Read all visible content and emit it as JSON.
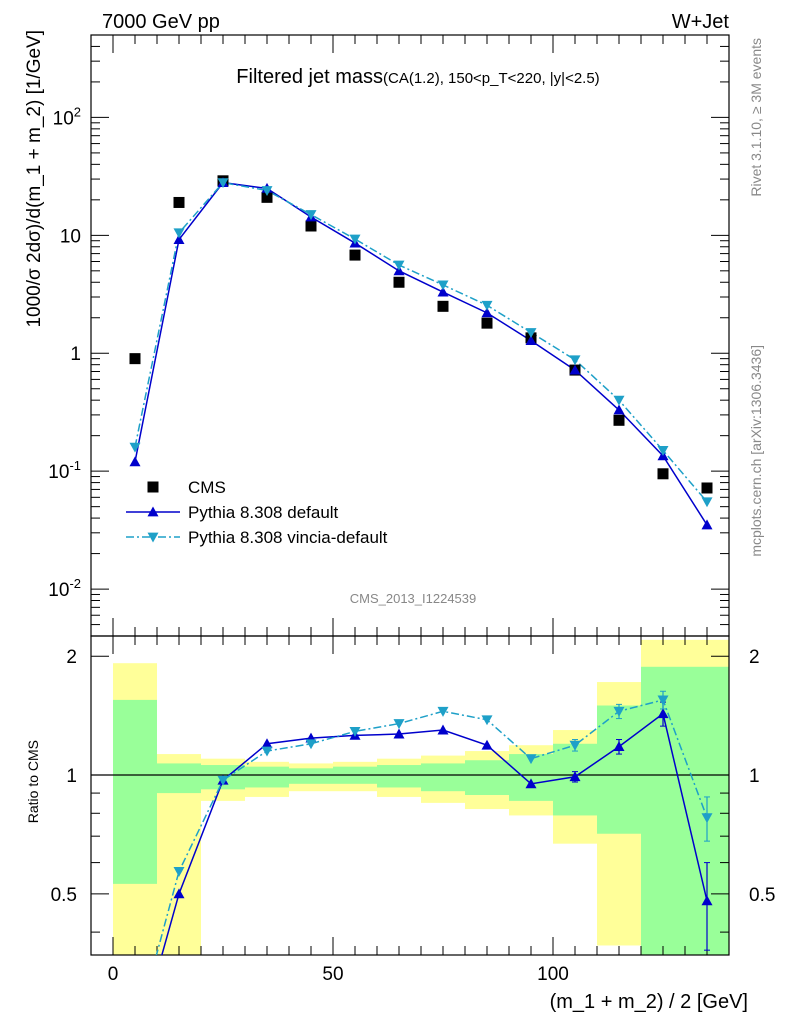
{
  "header": {
    "left": "7000 GeV pp",
    "right": "W+Jet"
  },
  "chart_data": [
    {
      "type": "line",
      "title": "Filtered jet mass",
      "subtitle": "(CA(1.2), 150<p_T<220, |y|<2.5)",
      "ylabel": "1000/σ 2dσ)/d(m_1 + m_2) [1/GeV]",
      "xlabel": "",
      "log_y": true,
      "xlim": [
        -5,
        140
      ],
      "ylim": [
        0.004,
        500
      ],
      "y_tick_labels": [
        "10^-2",
        "10^-1",
        "1",
        "10",
        "10^2"
      ],
      "watermark": "CMS_2013_I1224539",
      "side_label_top": "Rivet 3.1.10, ≥ 3M events",
      "side_label_bottom": "mcplots.cern.ch [arXiv:1306.3436]",
      "legend_position": "bottom-left",
      "x": [
        5,
        15,
        25,
        35,
        45,
        55,
        65,
        75,
        85,
        95,
        105,
        115,
        125,
        135
      ],
      "series": [
        {
          "name": "CMS",
          "style": "marker-square",
          "color": "#000000",
          "values": [
            0.9,
            19,
            29,
            21,
            12,
            6.8,
            4.0,
            2.5,
            1.8,
            1.35,
            0.72,
            0.27,
            0.095,
            0.072
          ]
        },
        {
          "name": "Pythia 8.308 default",
          "style": "solid-triangle-up",
          "color": "#0000cc",
          "values": [
            0.12,
            9.2,
            28,
            25,
            14.3,
            8.6,
            5.0,
            3.3,
            2.2,
            1.28,
            0.72,
            0.33,
            0.135,
            0.035
          ]
        },
        {
          "name": "Pythia 8.308 vincia-default",
          "style": "dashdot-triangle-down",
          "color": "#1ea0c8",
          "values": [
            0.16,
            10.5,
            28,
            24,
            15,
            9.3,
            5.6,
            3.8,
            2.55,
            1.5,
            0.88,
            0.4,
            0.15,
            0.055
          ]
        }
      ]
    },
    {
      "type": "line",
      "title": "",
      "xlabel": "(m_1 + m_2) / 2 [GeV]",
      "ylabel": "Ratio to CMS",
      "xlim": [
        -5,
        140
      ],
      "ylim": [
        0.35,
        2.25
      ],
      "x_ticks": [
        0,
        50,
        100
      ],
      "y_tick_labels": [
        "0.5",
        "1",
        "2"
      ],
      "x": [
        5,
        15,
        25,
        35,
        45,
        55,
        65,
        75,
        85,
        95,
        105,
        115,
        125,
        135
      ],
      "bin_edges": [
        0,
        10,
        20,
        30,
        40,
        50,
        60,
        70,
        80,
        90,
        100,
        110,
        120,
        140
      ],
      "band_yellow_lo": [
        0.35,
        0.35,
        0.86,
        0.88,
        0.91,
        0.91,
        0.88,
        0.85,
        0.82,
        0.79,
        0.67,
        0.37,
        0.35
      ],
      "band_yellow_hi": [
        1.92,
        1.13,
        1.1,
        1.08,
        1.07,
        1.08,
        1.1,
        1.12,
        1.15,
        1.19,
        1.3,
        1.72,
        2.2
      ],
      "band_green_lo": [
        0.53,
        0.9,
        0.92,
        0.93,
        0.95,
        0.95,
        0.93,
        0.91,
        0.89,
        0.86,
        0.79,
        0.71,
        0.35
      ],
      "band_green_hi": [
        1.55,
        1.07,
        1.06,
        1.05,
        1.04,
        1.05,
        1.06,
        1.07,
        1.09,
        1.13,
        1.2,
        1.5,
        1.88
      ],
      "series": [
        {
          "name": "Pythia 8.308 default",
          "color": "#0000cc",
          "values": [
            0.2,
            0.5,
            0.97,
            1.2,
            1.24,
            1.26,
            1.27,
            1.3,
            1.19,
            0.95,
            0.99,
            1.18,
            1.43,
            0.48
          ],
          "errors": [
            0,
            0,
            0,
            0,
            0,
            0,
            0,
            0,
            0,
            0,
            0.03,
            0.05,
            0.1,
            0.12
          ]
        },
        {
          "name": "Pythia 8.308 vincia-default",
          "color": "#1ea0c8",
          "values": [
            0.22,
            0.57,
            0.97,
            1.15,
            1.2,
            1.29,
            1.35,
            1.45,
            1.38,
            1.1,
            1.19,
            1.45,
            1.55,
            0.78
          ],
          "errors": [
            0,
            0,
            0,
            0,
            0,
            0,
            0,
            0,
            0,
            0,
            0.04,
            0.06,
            0.08,
            0.1
          ]
        }
      ]
    }
  ]
}
